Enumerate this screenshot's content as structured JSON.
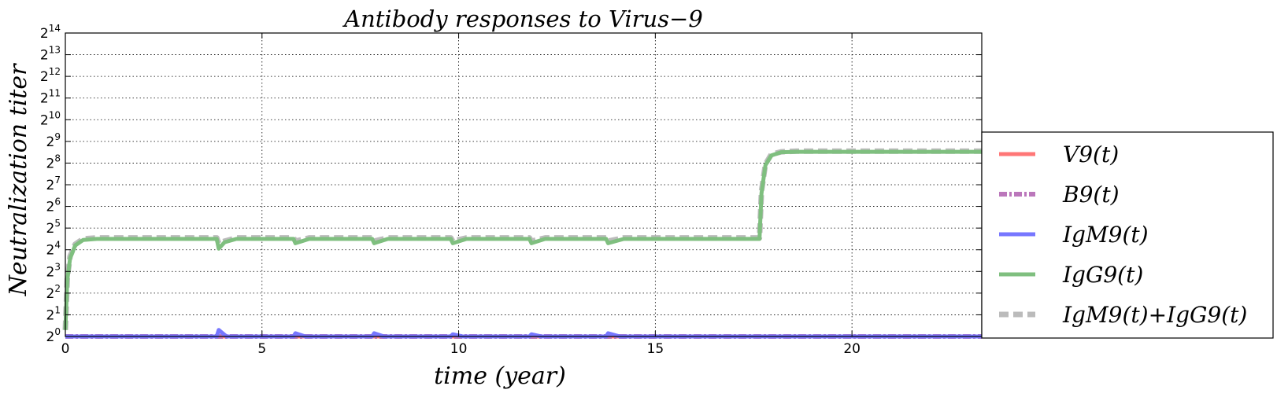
{
  "chart_data": {
    "type": "line",
    "title": "Antibody responses to Virus−9",
    "xlabel": "time (year)",
    "ylabel": "Neutralization  titer",
    "xlim": [
      0,
      23.3
    ],
    "ylim_log2": [
      0,
      14
    ],
    "log_base": 2,
    "grid": true,
    "legend_position": "right",
    "x_ticks": [
      0,
      5,
      10,
      15,
      20
    ],
    "y_ticks_log2": [
      0,
      1,
      2,
      3,
      4,
      5,
      6,
      7,
      8,
      9,
      10,
      11,
      12,
      13,
      14
    ],
    "series": [
      {
        "name": "V9(t)",
        "color": "#ff7777",
        "style": "solid",
        "points_log2": [
          [
            0,
            0
          ],
          [
            23.3,
            0
          ]
        ]
      },
      {
        "name": "B9(t)",
        "color": "#bb77bb",
        "style": "dashdot",
        "points_log2": [
          [
            0,
            0
          ],
          [
            23.3,
            0
          ]
        ]
      },
      {
        "name": "IgM9(t)",
        "color": "#7777ff",
        "style": "solid",
        "points_log2": [
          [
            0,
            0
          ],
          [
            3.85,
            0
          ],
          [
            3.9,
            0.3
          ],
          [
            4.1,
            0
          ],
          [
            5.8,
            0
          ],
          [
            5.85,
            0.15
          ],
          [
            6.1,
            0
          ],
          [
            7.8,
            0
          ],
          [
            7.85,
            0.15
          ],
          [
            8.1,
            0
          ],
          [
            9.8,
            0
          ],
          [
            9.85,
            0.1
          ],
          [
            10.1,
            0
          ],
          [
            11.8,
            0
          ],
          [
            11.85,
            0.1
          ],
          [
            12.1,
            0
          ],
          [
            13.75,
            0
          ],
          [
            13.8,
            0.15
          ],
          [
            14.1,
            0
          ],
          [
            23.3,
            0
          ]
        ]
      },
      {
        "name": "IgG9(t)",
        "color": "#7fbf7f",
        "style": "solid",
        "points_log2": [
          [
            0,
            0.3
          ],
          [
            0.05,
            2.6
          ],
          [
            0.12,
            3.6
          ],
          [
            0.25,
            4.2
          ],
          [
            0.45,
            4.45
          ],
          [
            0.8,
            4.5
          ],
          [
            3.85,
            4.5
          ],
          [
            3.9,
            4.05
          ],
          [
            4.05,
            4.35
          ],
          [
            4.35,
            4.5
          ],
          [
            5.8,
            4.5
          ],
          [
            5.85,
            4.3
          ],
          [
            6.2,
            4.5
          ],
          [
            7.8,
            4.5
          ],
          [
            7.85,
            4.3
          ],
          [
            8.2,
            4.5
          ],
          [
            9.8,
            4.5
          ],
          [
            9.85,
            4.3
          ],
          [
            10.2,
            4.5
          ],
          [
            11.8,
            4.5
          ],
          [
            11.85,
            4.3
          ],
          [
            12.2,
            4.5
          ],
          [
            13.75,
            4.5
          ],
          [
            13.8,
            4.3
          ],
          [
            14.2,
            4.5
          ],
          [
            17.65,
            4.5
          ],
          [
            17.7,
            6.6
          ],
          [
            17.8,
            7.9
          ],
          [
            17.95,
            8.35
          ],
          [
            18.2,
            8.5
          ],
          [
            18.6,
            8.52
          ],
          [
            23.3,
            8.52
          ]
        ]
      },
      {
        "name": "IgM9(t)+IgG9(t)",
        "color": "#bbbbbb",
        "style": "dashed",
        "points_log2": [
          [
            0,
            0.3
          ],
          [
            0.05,
            2.7
          ],
          [
            0.12,
            3.7
          ],
          [
            0.25,
            4.25
          ],
          [
            0.45,
            4.5
          ],
          [
            0.8,
            4.55
          ],
          [
            3.85,
            4.55
          ],
          [
            3.9,
            4.3
          ],
          [
            4.05,
            4.4
          ],
          [
            4.35,
            4.55
          ],
          [
            5.8,
            4.55
          ],
          [
            5.85,
            4.4
          ],
          [
            6.2,
            4.55
          ],
          [
            7.8,
            4.55
          ],
          [
            7.85,
            4.4
          ],
          [
            8.2,
            4.55
          ],
          [
            9.8,
            4.55
          ],
          [
            9.85,
            4.4
          ],
          [
            10.2,
            4.55
          ],
          [
            11.8,
            4.55
          ],
          [
            11.85,
            4.4
          ],
          [
            12.2,
            4.55
          ],
          [
            13.75,
            4.55
          ],
          [
            13.8,
            4.4
          ],
          [
            14.2,
            4.55
          ],
          [
            17.65,
            4.55
          ],
          [
            17.7,
            6.7
          ],
          [
            17.8,
            7.95
          ],
          [
            17.95,
            8.4
          ],
          [
            18.2,
            8.52
          ],
          [
            18.6,
            8.55
          ],
          [
            23.3,
            8.55
          ]
        ]
      }
    ]
  }
}
